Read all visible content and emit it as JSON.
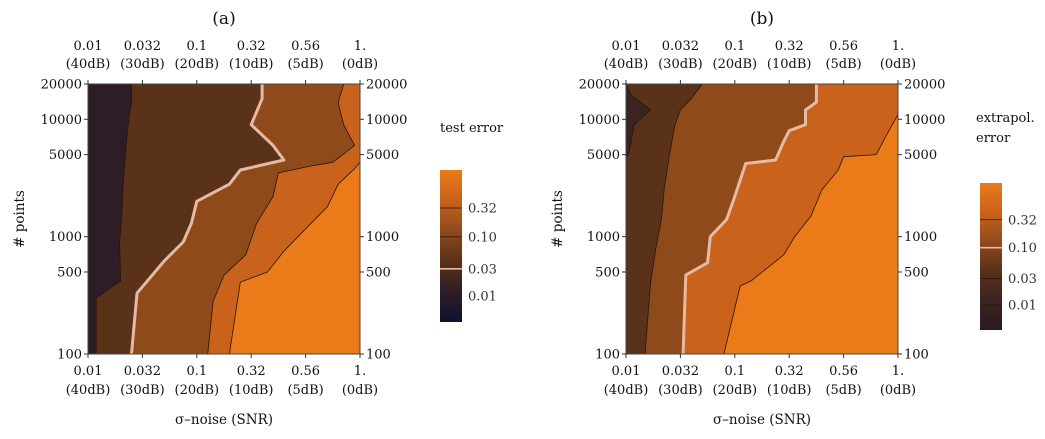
{
  "chart_data": [
    {
      "type": "contour",
      "panel_label": "(a)",
      "colorbar_title": [
        "test error"
      ],
      "colorbar_ticks": [
        "0.32",
        "0.10",
        "0.03",
        "0.01"
      ],
      "highlighted_contour": "0.03",
      "x_ticks_top": [
        [
          "0.01",
          "(40dB)"
        ],
        [
          "0.032",
          "(30dB)"
        ],
        [
          "0.1",
          "(20dB)"
        ],
        [
          "0.32",
          "(10dB)"
        ],
        [
          "0.56",
          "(5dB)"
        ],
        [
          "1.",
          "(0dB)"
        ]
      ],
      "x_ticks_bottom": [
        [
          "0.01",
          "(40dB)"
        ],
        [
          "0.032",
          "(30dB)"
        ],
        [
          "0.1",
          "(20dB)"
        ],
        [
          "0.32",
          "(10dB)"
        ],
        [
          "0.56",
          "(5dB)"
        ],
        [
          "1.",
          "(0dB)"
        ]
      ],
      "y_ticks": [
        "20000",
        "10000",
        "5000",
        "1000",
        "500",
        "100"
      ],
      "xlabel": "σ–noise (SNR)",
      "ylabel": "# points",
      "x_values": [
        0.01,
        0.032,
        0.1,
        0.32,
        0.56,
        1.0
      ],
      "y_values": [
        20000,
        10000,
        5000,
        1000,
        500,
        100
      ],
      "contour_levels": [
        0.01,
        0.03,
        0.1,
        0.32
      ],
      "colors": [
        "#0f1232",
        "#2e1d26",
        "#5a3119",
        "#8f4a1c",
        "#c9621a",
        "#eb7a18"
      ],
      "region_boundaries": [
        [
          [
            0.8,
            20000
          ],
          [
            0.8,
            14000
          ],
          [
            0.75,
            10000
          ],
          [
            0.7,
            6000
          ],
          [
            0.65,
            3000
          ],
          [
            0.62,
            1500
          ],
          [
            0.58,
            900
          ],
          [
            0.6,
            420
          ],
          [
            0.15,
            300
          ],
          [
            0.15,
            100
          ]
        ],
        [
          [
            3.2,
            20000
          ],
          [
            3.2,
            15000
          ],
          [
            3.0,
            9000
          ],
          [
            3.4,
            6000
          ],
          [
            3.6,
            4500
          ],
          [
            2.8,
            3700
          ],
          [
            2.6,
            2800
          ],
          [
            2.0,
            2000
          ],
          [
            1.9,
            1300
          ],
          [
            1.75,
            900
          ],
          [
            1.4,
            620
          ],
          [
            0.9,
            330
          ],
          [
            0.8,
            100
          ]
        ],
        [
          [
            4.7,
            20000
          ],
          [
            4.6,
            14000
          ],
          [
            4.65,
            11000
          ],
          [
            4.7,
            9000
          ],
          [
            4.9,
            6000
          ],
          [
            4.5,
            4300
          ],
          [
            4.1,
            4000
          ],
          [
            3.5,
            3500
          ],
          [
            3.4,
            2200
          ],
          [
            3.1,
            1300
          ],
          [
            2.9,
            700
          ],
          [
            2.5,
            470
          ],
          [
            2.3,
            280
          ],
          [
            2.2,
            100
          ]
        ],
        [
          [
            5.0,
            4300
          ],
          [
            4.9,
            3800
          ],
          [
            4.6,
            2800
          ],
          [
            4.4,
            1800
          ],
          [
            4.1,
            1300
          ],
          [
            3.6,
            750
          ],
          [
            3.3,
            500
          ],
          [
            2.8,
            410
          ],
          [
            2.6,
            100
          ]
        ]
      ]
    },
    {
      "type": "contour",
      "panel_label": "(b)",
      "colorbar_title": [
        "extrapol.",
        "error"
      ],
      "colorbar_ticks": [
        "0.32",
        "0.10",
        "0.03",
        "0.01"
      ],
      "highlighted_contour": "0.10",
      "x_ticks_top": [
        [
          "0.01",
          "(40dB)"
        ],
        [
          "0.032",
          "(30dB)"
        ],
        [
          "0.1",
          "(20dB)"
        ],
        [
          "0.32",
          "(10dB)"
        ],
        [
          "0.56",
          "(5dB)"
        ],
        [
          "1.",
          "(0dB)"
        ]
      ],
      "x_ticks_bottom": [
        [
          "0.01",
          "(40dB)"
        ],
        [
          "0.032",
          "(30dB)"
        ],
        [
          "0.1",
          "(20dB)"
        ],
        [
          "0.32",
          "(10dB)"
        ],
        [
          "0.56",
          "(5dB)"
        ],
        [
          "1.",
          "(0dB)"
        ]
      ],
      "y_ticks": [
        "20000",
        "10000",
        "5000",
        "1000",
        "500",
        "100"
      ],
      "xlabel": "σ–noise (SNR)",
      "ylabel": "# points",
      "x_values": [
        0.01,
        0.032,
        0.1,
        0.32,
        0.56,
        1.0
      ],
      "y_values": [
        20000,
        10000,
        5000,
        1000,
        500,
        100
      ],
      "contour_levels": [
        0.01,
        0.03,
        0.1,
        0.32
      ],
      "colors": [
        "#2a1a22",
        "#3b2420",
        "#5a3119",
        "#8f4a1c",
        "#c9621a",
        "#eb7a18"
      ],
      "region_boundaries": [
        [
          [
            0.0,
            20000
          ],
          [
            0.1,
            16000
          ],
          [
            0.45,
            12000
          ],
          [
            0.15,
            9000
          ],
          [
            0.05,
            5000
          ],
          [
            0.0,
            4800
          ]
        ],
        [
          [
            1.4,
            20000
          ],
          [
            1.2,
            15000
          ],
          [
            1.0,
            12000
          ],
          [
            0.9,
            9000
          ],
          [
            0.8,
            5000
          ],
          [
            0.7,
            2500
          ],
          [
            0.65,
            1400
          ],
          [
            0.55,
            800
          ],
          [
            0.45,
            400
          ],
          [
            0.35,
            100
          ]
        ],
        [
          [
            3.5,
            20000
          ],
          [
            3.5,
            14000
          ],
          [
            3.3,
            12000
          ],
          [
            3.3,
            9000
          ],
          [
            3.0,
            8000
          ],
          [
            2.9,
            6500
          ],
          [
            2.75,
            4500
          ],
          [
            2.2,
            4200
          ],
          [
            2.0,
            2200
          ],
          [
            1.85,
            1400
          ],
          [
            1.55,
            1000
          ],
          [
            1.5,
            600
          ],
          [
            1.1,
            470
          ],
          [
            1.05,
            100
          ]
        ],
        [
          [
            5.0,
            11000
          ],
          [
            4.8,
            7500
          ],
          [
            4.6,
            5000
          ],
          [
            4.0,
            4800
          ],
          [
            3.9,
            3700
          ],
          [
            3.6,
            2500
          ],
          [
            3.4,
            1500
          ],
          [
            3.1,
            1000
          ],
          [
            2.9,
            700
          ],
          [
            2.3,
            420
          ],
          [
            2.1,
            380
          ],
          [
            1.8,
            100
          ]
        ]
      ]
    }
  ]
}
